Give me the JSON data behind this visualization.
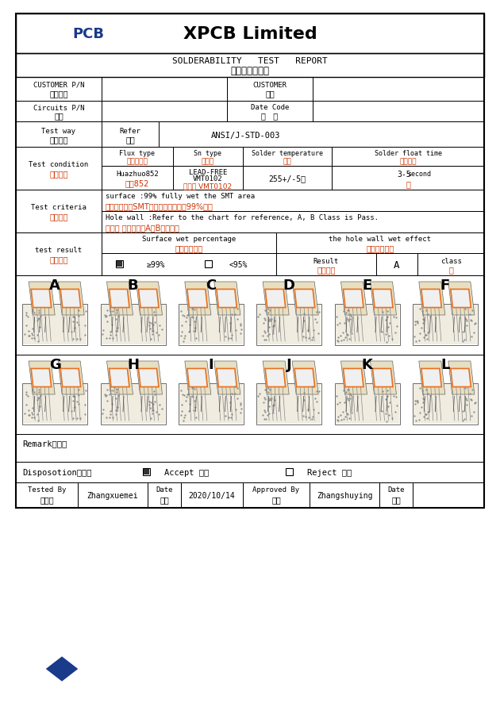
{
  "title": "XPCB Limited",
  "subtitle1": "SOLDERABILITY   TEST   REPORT",
  "subtitle2": "可焊性测试报告",
  "bg_color": "#ffffff",
  "blue_color": "#1a3a8a",
  "row1_label1a": "CUSTOMER P/N",
  "row1_label1b": "客户型号",
  "row1_label2a": "CUSTOMER",
  "row1_label2b": "客户",
  "row2_label1a": "Circuits P/N",
  "row2_label1b": "型号",
  "row2_label2a": "Date Code",
  "row2_label2b": "周   期",
  "row3_label1a": "Test way",
  "row3_label1b": "测试方法",
  "row3_ref_a": "Refer",
  "row3_ref_b": "参考",
  "row3_value": "ANSI/J-STD-003",
  "row4_label_a": "Test condition",
  "row4_label_b": "测试条件",
  "tc_h1a": "Flux type",
  "tc_h1b": "助焊剂类型",
  "tc_h2a": "Sn type",
  "tc_h2b": "锡种类",
  "tc_h3a": "Solder temperature",
  "tc_h3b": "锡温",
  "tc_h4a": "Solder float time",
  "tc_h4b": "浮锡时间",
  "tc_v1a": "Huazhuo852",
  "tc_v1b": "华卓852",
  "tc_v2a": "LEAD-FREE",
  "tc_v2b": "VMT0102",
  "tc_v2c": "无铅锡 VMT0102",
  "tc_v3": "255+/-5℃",
  "tc_v4a": "3-5",
  "tc_v4b": "second",
  "tc_v4c": "秒",
  "crit_label_a": "Test criteria",
  "crit_label_b": "测试标准",
  "crit1_en": "surface :99% fully wet the SMT area",
  "crit1_cn": "板面：主要指SMT焊盘，温湿面积为99%以上",
  "crit2_en": "Hole wall :Refer to the chart for reference, A, B Class is Pass.",
  "crit2_cn": "孔壁： 参照下图示A、B级为合格",
  "res_label_a": "test result",
  "res_label_b": "测试结果",
  "surf_head_a": "Surface wet percentage",
  "surf_head_b": "板面温港面积",
  "hole_head_a": "the hole wall wet effect",
  "hole_head_b": "孔壁上锡效果",
  "chk1": "≥99%",
  "chk2": "<95%",
  "res_a": "Result",
  "res_b": "图示效果",
  "res_val": "A",
  "cls_a": "class",
  "cls_b": "级",
  "letters": [
    "A",
    "B",
    "C",
    "D",
    "E",
    "F",
    "G",
    "H",
    "I",
    "J",
    "K",
    "L"
  ],
  "remark": "Remark各注：",
  "disp": "Disposotion评定：",
  "accept": "Accept 接收",
  "reject": "Reject 拒收",
  "tb_a": "Tested By",
  "tb_b": "检查员",
  "tb_val": "Zhangxuemei",
  "dt_a": "Date",
  "dt_b": "日期",
  "dt_val": "2020/10/14",
  "ab_a": "Approved By",
  "ab_b": "审核",
  "ab_val": "Zhangshuying"
}
